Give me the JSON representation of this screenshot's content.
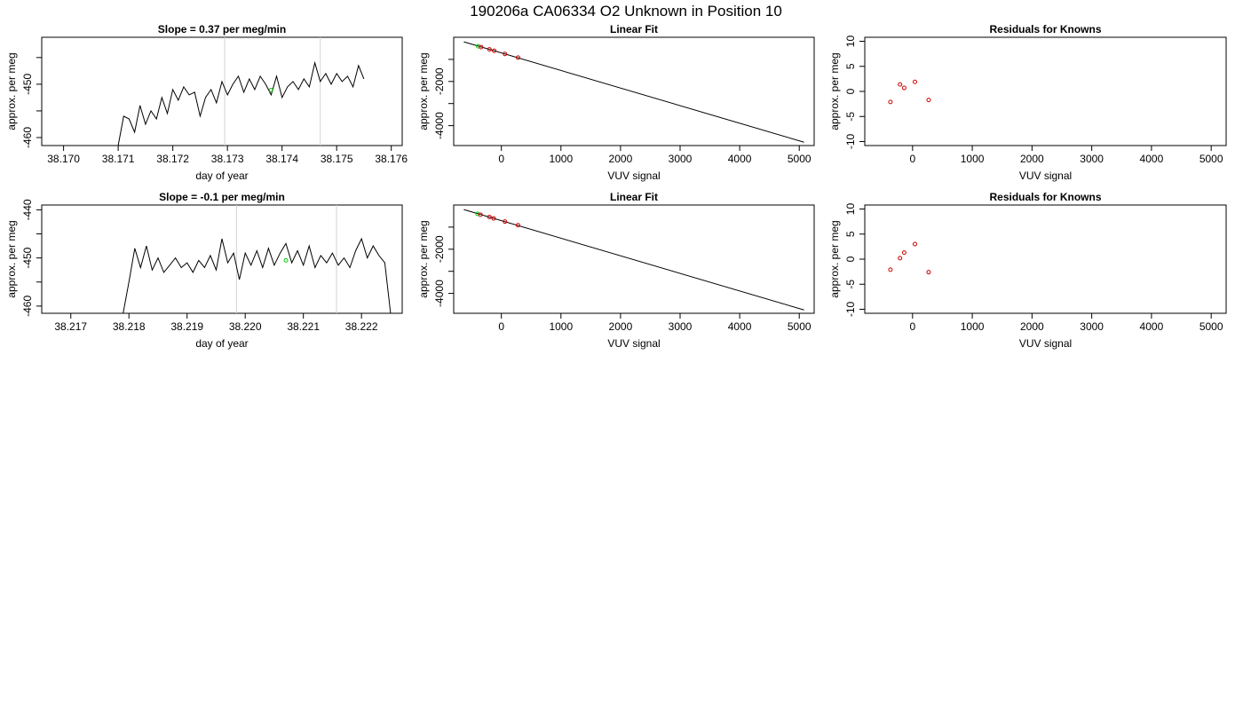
{
  "page_title": "190206a     CA06334   O2 Unknown in Position  10",
  "colors": {
    "line": "#000000",
    "grid": "#d3d3d3",
    "known": "#cd0000",
    "unknown": "#00cd00"
  },
  "chart_data": [
    {
      "type": "line",
      "title": "Slope =  0.37  per meg/min",
      "xlabel": "day of year",
      "ylabel": "approx. per meg",
      "xlim": [
        38.1696,
        38.1762
      ],
      "ylim": [
        -461.5,
        -441.2
      ],
      "xticks": [
        "38.170",
        "38.171",
        "38.172",
        "38.173",
        "38.174",
        "38.175",
        "38.176"
      ],
      "yticks": [
        "-460",
        "-450"
      ],
      "ytick_values": [
        -460,
        -455,
        -450,
        -445
      ],
      "vlines": [
        38.17295,
        38.1747
      ],
      "marker": {
        "x": 38.1738,
        "y": -451.1
      },
      "series": [
        {
          "x": [
            38.171,
            38.1711,
            38.1712,
            38.1713,
            38.1714,
            38.1715,
            38.1716,
            38.1717,
            38.1718,
            38.1719,
            38.172,
            38.1721,
            38.1722,
            38.1723,
            38.1724,
            38.1725,
            38.1726,
            38.1727,
            38.1728,
            38.1729,
            38.173,
            38.1731,
            38.1732,
            38.1733,
            38.1734,
            38.1735,
            38.1736,
            38.1737,
            38.1738,
            38.1739,
            38.174,
            38.1741,
            38.1742,
            38.1743,
            38.1744,
            38.1745,
            38.1746,
            38.1747,
            38.1748,
            38.1749,
            38.175,
            38.1751,
            38.1752,
            38.1753,
            38.1754,
            38.1755
          ],
          "y": [
            -461.5,
            -456.0,
            -456.5,
            -459.0,
            -454.0,
            -457.5,
            -455.0,
            -456.5,
            -452.5,
            -455.5,
            -451.0,
            -453.0,
            -450.5,
            -452.0,
            -451.5,
            -456.0,
            -452.5,
            -451.0,
            -453.5,
            -449.5,
            -452.0,
            -450.0,
            -448.5,
            -451.5,
            -449.0,
            -451.0,
            -448.5,
            -450.0,
            -452.0,
            -448.5,
            -452.5,
            -450.5,
            -449.5,
            -451.0,
            -449.0,
            -450.5,
            -446.0,
            -449.5,
            -448.0,
            -450.0,
            -448.0,
            -449.5,
            -448.5,
            -450.5,
            -446.5,
            -449.0
          ]
        }
      ]
    },
    {
      "type": "scatter",
      "title": "Linear Fit",
      "xlabel": "VUV signal",
      "ylabel": "approx. per meg",
      "xlim": [
        -800,
        5250
      ],
      "ylim": [
        -4900,
        0
      ],
      "xticks": [
        "0",
        "1000",
        "2000",
        "3000",
        "4000",
        "5000"
      ],
      "yticks": [
        "-2000",
        "-4000"
      ],
      "ytick_values": [
        -1000,
        -2000,
        -3000,
        -4000
      ],
      "fit_line": {
        "x": [
          -630,
          5080
        ],
        "y": [
          -205,
          -4750
        ]
      },
      "knowns": {
        "x": [
          -340,
          -200,
          -120,
          60,
          280
        ],
        "y": [
          -445,
          -545,
          -610,
          -755,
          -920
        ]
      },
      "unknowns": {
        "x": [
          -390
        ],
        "y": [
          -405
        ]
      }
    },
    {
      "type": "scatter",
      "title": "Residuals for Knowns",
      "xlabel": "VUV signal",
      "ylabel": "approx. per meg",
      "xlim": [
        -800,
        5250
      ],
      "ylim": [
        -10.8,
        10.8
      ],
      "xticks": [
        "0",
        "1000",
        "2000",
        "3000",
        "4000",
        "5000"
      ],
      "yticks": [
        "-10",
        "-5",
        "0",
        "5",
        "10"
      ],
      "ytick_values": [
        -10,
        -5,
        0,
        5,
        10
      ],
      "knowns": {
        "x": [
          -370,
          -210,
          -140,
          40,
          270
        ],
        "y": [
          -2.1,
          1.4,
          0.7,
          1.9,
          -1.7
        ]
      }
    },
    {
      "type": "line",
      "title": "Slope =  -0.1  per meg/min",
      "xlabel": "day of year",
      "ylabel": "approx. per meg",
      "xlim": [
        38.2165,
        38.2227
      ],
      "ylim": [
        -461.5,
        -439.0
      ],
      "xticks": [
        "38.217",
        "38.218",
        "38.219",
        "38.220",
        "38.221",
        "38.222"
      ],
      "yticks": [
        "-460",
        "-450",
        "-440"
      ],
      "ytick_values": [
        -460,
        -455,
        -450,
        -445,
        -440
      ],
      "vlines": [
        38.21985,
        38.22157
      ],
      "marker": {
        "x": 38.2207,
        "y": -450.5
      },
      "series": [
        {
          "x": [
            38.2179,
            38.218,
            38.2181,
            38.2182,
            38.2183,
            38.2184,
            38.2185,
            38.2186,
            38.2187,
            38.2188,
            38.2189,
            38.219,
            38.2191,
            38.2192,
            38.2193,
            38.2194,
            38.2195,
            38.2196,
            38.2197,
            38.2198,
            38.2199,
            38.22,
            38.2201,
            38.2202,
            38.2203,
            38.2204,
            38.2205,
            38.2206,
            38.2207,
            38.2208,
            38.2209,
            38.221,
            38.2211,
            38.2212,
            38.2213,
            38.2214,
            38.2215,
            38.2216,
            38.2217,
            38.2218,
            38.2219,
            38.222,
            38.2221,
            38.2222,
            38.2223,
            38.2224,
            38.2225
          ],
          "y": [
            -461.5,
            -455.0,
            -448.0,
            -452.0,
            -447.5,
            -452.5,
            -450.0,
            -453.0,
            -451.5,
            -450.0,
            -452.0,
            -451.0,
            -453.0,
            -450.5,
            -452.0,
            -449.5,
            -452.5,
            -446.0,
            -451.0,
            -449.0,
            -454.5,
            -449.0,
            -451.5,
            -448.5,
            -452.0,
            -448.0,
            -451.5,
            -449.0,
            -447.0,
            -451.0,
            -448.5,
            -451.5,
            -447.5,
            -452.0,
            -449.5,
            -451.0,
            -449.0,
            -451.5,
            -450.0,
            -452.0,
            -448.5,
            -446.0,
            -450.0,
            -447.5,
            -449.5,
            -451.0,
            -461.5
          ]
        }
      ]
    },
    {
      "type": "scatter",
      "title": "Linear Fit",
      "xlabel": "VUV signal",
      "ylabel": "approx. per meg",
      "xlim": [
        -800,
        5250
      ],
      "ylim": [
        -4900,
        0
      ],
      "xticks": [
        "0",
        "1000",
        "2000",
        "3000",
        "4000",
        "5000"
      ],
      "yticks": [
        "-2000",
        "-4000"
      ],
      "ytick_values": [
        -1000,
        -2000,
        -3000,
        -4000
      ],
      "fit_line": {
        "x": [
          -630,
          5080
        ],
        "y": [
          -205,
          -4750
        ]
      },
      "knowns": {
        "x": [
          -350,
          -200,
          -130,
          60,
          280
        ],
        "y": [
          -440,
          -540,
          -605,
          -750,
          -915
        ]
      },
      "unknowns": {
        "x": [
          -400
        ],
        "y": [
          -400
        ]
      }
    },
    {
      "type": "scatter",
      "title": "Residuals for Knowns",
      "xlabel": "VUV signal",
      "ylabel": "approx. per meg",
      "xlim": [
        -800,
        5250
      ],
      "ylim": [
        -10.8,
        10.8
      ],
      "xticks": [
        "0",
        "1000",
        "2000",
        "3000",
        "4000",
        "5000"
      ],
      "yticks": [
        "-10",
        "-5",
        "0",
        "5",
        "10"
      ],
      "ytick_values": [
        -10,
        -5,
        0,
        5,
        10
      ],
      "knowns": {
        "x": [
          -370,
          -210,
          -140,
          40,
          270
        ],
        "y": [
          -2.1,
          0.2,
          1.3,
          3.0,
          -2.6
        ]
      }
    }
  ]
}
